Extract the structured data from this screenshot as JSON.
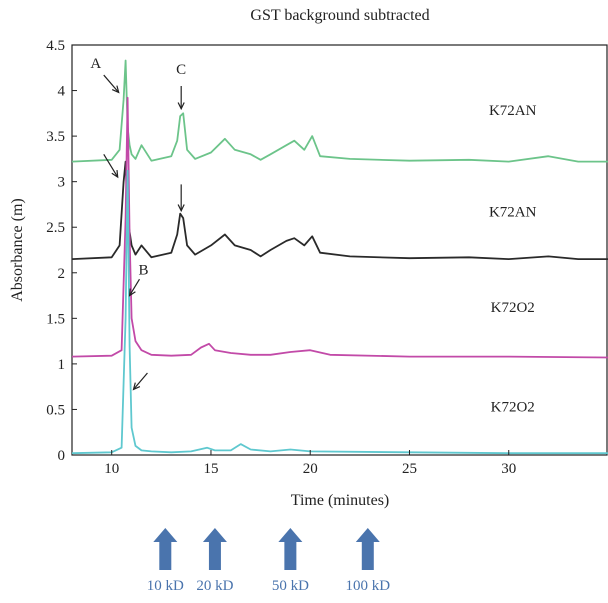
{
  "chart_data": {
    "type": "line",
    "title": "GST background subtracted",
    "xlabel": "Time (minutes)",
    "ylabel": "Absorbance (m)",
    "xlim": [
      8,
      35
    ],
    "ylim": [
      0,
      4.5
    ],
    "x_ticks": [
      10,
      15,
      20,
      25,
      30
    ],
    "y_ticks": [
      0,
      0.5,
      1,
      1.5,
      2,
      2.5,
      3,
      3.5,
      4,
      4.5
    ],
    "grid": false,
    "series": [
      {
        "name": "K72AN",
        "color": "#6cc48a",
        "baseline": 3.22,
        "x": [
          8,
          10,
          10.4,
          10.6,
          10.7,
          10.8,
          10.9,
          11.0,
          11.2,
          11.5,
          12,
          13,
          13.3,
          13.45,
          13.6,
          13.8,
          14.2,
          15,
          15.7,
          16.2,
          17,
          17.5,
          18,
          18.8,
          19.2,
          19.7,
          20.1,
          20.5,
          22,
          25,
          28,
          30,
          32,
          33.5,
          35
        ],
        "values": [
          3.22,
          3.24,
          3.35,
          3.9,
          4.33,
          3.6,
          3.4,
          3.3,
          3.25,
          3.4,
          3.23,
          3.28,
          3.45,
          3.72,
          3.75,
          3.35,
          3.25,
          3.32,
          3.47,
          3.35,
          3.3,
          3.24,
          3.3,
          3.4,
          3.45,
          3.35,
          3.5,
          3.28,
          3.25,
          3.23,
          3.24,
          3.22,
          3.28,
          3.22,
          3.22
        ]
      },
      {
        "name": "K72AN",
        "color": "#2a2a2a",
        "baseline": 2.15,
        "x": [
          8,
          10,
          10.4,
          10.6,
          10.7,
          10.8,
          10.9,
          11.0,
          11.2,
          11.5,
          12,
          13,
          13.3,
          13.45,
          13.6,
          13.8,
          14.2,
          15,
          15.7,
          16.2,
          17,
          17.5,
          18,
          18.8,
          19.2,
          19.7,
          20.1,
          20.5,
          22,
          25,
          28,
          30,
          32,
          33.5,
          35
        ],
        "values": [
          2.15,
          2.17,
          2.3,
          3.0,
          3.22,
          2.6,
          2.45,
          2.3,
          2.2,
          2.3,
          2.17,
          2.22,
          2.42,
          2.65,
          2.6,
          2.3,
          2.2,
          2.3,
          2.42,
          2.3,
          2.25,
          2.18,
          2.25,
          2.35,
          2.38,
          2.3,
          2.4,
          2.22,
          2.18,
          2.16,
          2.17,
          2.15,
          2.18,
          2.15,
          2.15
        ]
      },
      {
        "name": "K72O2",
        "color": "#c24aa8",
        "baseline": 1.07,
        "x": [
          8,
          10,
          10.5,
          10.7,
          10.8,
          10.9,
          11.0,
          11.2,
          11.5,
          12,
          13,
          14,
          14.5,
          14.9,
          15.2,
          16,
          17,
          18,
          19,
          20,
          21,
          25,
          30,
          35
        ],
        "values": [
          1.08,
          1.09,
          1.15,
          2.6,
          3.92,
          2.4,
          1.5,
          1.25,
          1.15,
          1.1,
          1.09,
          1.1,
          1.18,
          1.22,
          1.15,
          1.12,
          1.1,
          1.1,
          1.13,
          1.15,
          1.1,
          1.08,
          1.08,
          1.07
        ]
      },
      {
        "name": "K72O2",
        "color": "#5fc8cf",
        "baseline": 0.02,
        "x": [
          8,
          10,
          10.5,
          10.7,
          10.8,
          10.9,
          11.0,
          11.2,
          11.5,
          12,
          13,
          14,
          14.8,
          15.2,
          16,
          16.5,
          17,
          18,
          19,
          20,
          25,
          30,
          35
        ],
        "values": [
          0.02,
          0.03,
          0.08,
          1.5,
          3.12,
          1.2,
          0.3,
          0.1,
          0.05,
          0.04,
          0.03,
          0.04,
          0.08,
          0.05,
          0.05,
          0.12,
          0.06,
          0.04,
          0.06,
          0.04,
          0.03,
          0.02,
          0.02
        ]
      }
    ],
    "curve_labels": [
      {
        "text": "K72AN",
        "x": 30.2,
        "y": 3.73
      },
      {
        "text": "K72AN",
        "x": 30.2,
        "y": 2.62
      },
      {
        "text": "K72O2",
        "x": 30.2,
        "y": 1.57
      },
      {
        "text": "K72O2",
        "x": 30.2,
        "y": 0.48
      }
    ],
    "annotations": [
      {
        "text": "A",
        "x": 9.2,
        "y": 4.25,
        "arrow_from": [
          9.6,
          4.17
        ],
        "arrow_to": [
          10.35,
          3.98
        ]
      },
      {
        "text": "C",
        "x": 13.5,
        "y": 4.18,
        "arrow_from": [
          13.5,
          4.05
        ],
        "arrow_to": [
          13.5,
          3.8
        ]
      },
      {
        "text": "",
        "arrow_from": [
          9.6,
          3.3
        ],
        "arrow_to": [
          10.3,
          3.05
        ]
      },
      {
        "text": "",
        "arrow_from": [
          13.5,
          2.97
        ],
        "arrow_to": [
          13.5,
          2.68
        ]
      },
      {
        "text": "B",
        "x": 11.6,
        "y": 1.98,
        "arrow_from": [
          11.4,
          1.93
        ],
        "arrow_to": [
          10.9,
          1.75
        ]
      },
      {
        "text": "",
        "arrow_from": [
          11.8,
          0.9
        ],
        "arrow_to": [
          11.1,
          0.72
        ]
      }
    ],
    "markers": [
      {
        "label": "10 kD",
        "x": 12.7
      },
      {
        "label": "20 kD",
        "x": 15.2
      },
      {
        "label": "50 kD",
        "x": 19.0
      },
      {
        "label": "100 kD",
        "x": 22.9
      }
    ],
    "marker_color": "#4a74ad"
  }
}
